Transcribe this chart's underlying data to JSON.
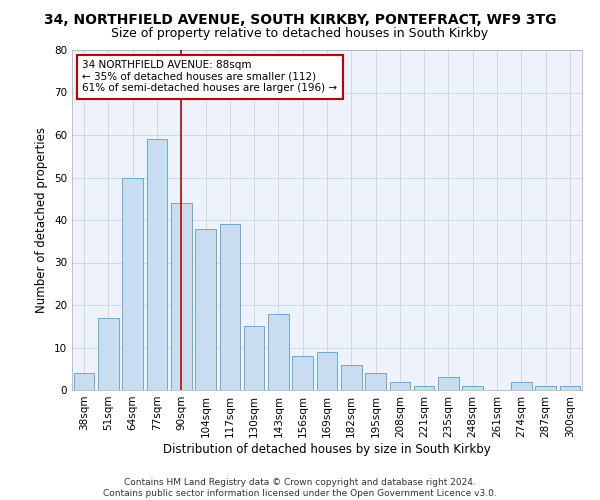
{
  "title1": "34, NORTHFIELD AVENUE, SOUTH KIRKBY, PONTEFRACT, WF9 3TG",
  "title2": "Size of property relative to detached houses in South Kirkby",
  "xlabel": "Distribution of detached houses by size in South Kirkby",
  "ylabel": "Number of detached properties",
  "categories": [
    "38sqm",
    "51sqm",
    "64sqm",
    "77sqm",
    "90sqm",
    "104sqm",
    "117sqm",
    "130sqm",
    "143sqm",
    "156sqm",
    "169sqm",
    "182sqm",
    "195sqm",
    "208sqm",
    "221sqm",
    "235sqm",
    "248sqm",
    "261sqm",
    "274sqm",
    "287sqm",
    "300sqm"
  ],
  "values": [
    4,
    17,
    50,
    59,
    44,
    38,
    39,
    15,
    18,
    8,
    9,
    6,
    4,
    2,
    1,
    3,
    1,
    0,
    2,
    1,
    1
  ],
  "bar_color": "#c9ddf0",
  "bar_edge_color": "#6aaad4",
  "vline_x_index": 4,
  "vline_color": "#c00000",
  "annotation_line1": "34 NORTHFIELD AVENUE: 88sqm",
  "annotation_line2": "← 35% of detached houses are smaller (112)",
  "annotation_line3": "61% of semi-detached houses are larger (196) →",
  "annotation_box_color": "white",
  "annotation_box_edge_color": "#c00000",
  "ylim": [
    0,
    80
  ],
  "yticks": [
    0,
    10,
    20,
    30,
    40,
    50,
    60,
    70,
    80
  ],
  "grid_color": "#c8d4e8",
  "footnote": "Contains HM Land Registry data © Crown copyright and database right 2024.\nContains public sector information licensed under the Open Government Licence v3.0.",
  "bg_color": "#ffffff",
  "plot_bg_color": "#edf2fb",
  "title1_fontsize": 10,
  "title2_fontsize": 9,
  "xlabel_fontsize": 8.5,
  "ylabel_fontsize": 8.5,
  "tick_fontsize": 7.5,
  "annotation_fontsize": 7.5,
  "footnote_fontsize": 6.5
}
